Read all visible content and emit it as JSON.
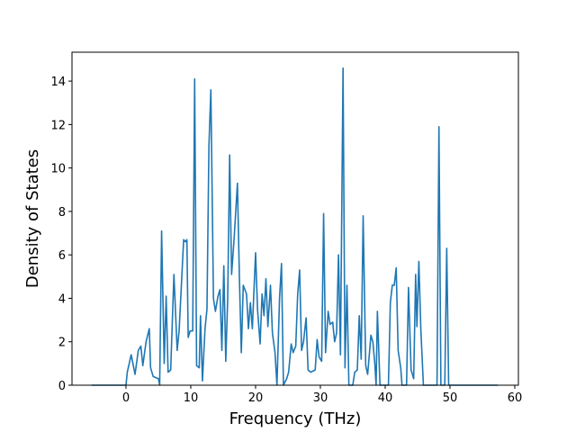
{
  "chart_data": {
    "type": "line",
    "xlabel": "Frequency (THz)",
    "ylabel": "Density of States",
    "x": [
      -5.3,
      0,
      0.2,
      0.8,
      1.4,
      1.9,
      2.3,
      2.6,
      3.1,
      3.6,
      3.8,
      4.2,
      5.0,
      5.2,
      5.5,
      5.9,
      6.2,
      6.5,
      6.9,
      7.4,
      7.9,
      8.2,
      8.9,
      9.2,
      9.4,
      9.6,
      9.9,
      10.3,
      10.6,
      10.9,
      11.3,
      11.5,
      11.8,
      12.2,
      12.5,
      12.8,
      13.1,
      13.5,
      13.8,
      14.2,
      14.5,
      14.8,
      15.1,
      15.4,
      15.7,
      16.0,
      16.3,
      16.7,
      17.2,
      17.5,
      17.8,
      18.1,
      18.6,
      18.9,
      19.2,
      19.5,
      20.0,
      20.3,
      20.7,
      21.0,
      21.3,
      21.6,
      21.9,
      22.3,
      22.6,
      23.0,
      23.3,
      23.7,
      24.0,
      24.3,
      24.8,
      25.1,
      25.5,
      25.8,
      26.2,
      26.5,
      26.8,
      27.1,
      27.4,
      27.8,
      28.1,
      28.5,
      29.2,
      29.5,
      29.8,
      30.2,
      30.5,
      30.8,
      31.2,
      31.5,
      31.9,
      32.2,
      32.5,
      32.8,
      33.1,
      33.5,
      33.8,
      34.1,
      34.4,
      35.0,
      35.3,
      35.7,
      36.0,
      36.3,
      36.6,
      37.0,
      37.3,
      37.8,
      38.1,
      38.4,
      38.6,
      38.8,
      39.2,
      40.5,
      40.8,
      41.1,
      41.4,
      41.7,
      42.0,
      42.4,
      42.6,
      43.3,
      43.6,
      44.0,
      44.4,
      44.7,
      44.9,
      45.2,
      45.5,
      45.9,
      46.3,
      48.0,
      48.3,
      48.6,
      49.2,
      49.5,
      49.8,
      57.4
    ],
    "series": [
      {
        "name": "DOS",
        "color": "#1f77b4",
        "values": [
          0,
          0,
          0.6,
          1.4,
          0.5,
          1.6,
          1.8,
          0.9,
          2,
          2.6,
          0.8,
          0.4,
          0.3,
          0,
          7.1,
          1.0,
          4.1,
          0.6,
          0.7,
          5.1,
          1.6,
          2.5,
          6.7,
          6.6,
          6.7,
          2.2,
          2.5,
          2.5,
          14.1,
          0.9,
          0.8,
          3.2,
          0.2,
          2.6,
          3.5,
          11,
          13.6,
          4.0,
          3.4,
          4.1,
          4.4,
          1.6,
          5.5,
          1.1,
          4,
          10.6,
          5.1,
          6.8,
          9.3,
          5,
          1.5,
          4.6,
          4.2,
          2.6,
          3.8,
          2.6,
          6.1,
          3.5,
          1.9,
          4.2,
          3.2,
          4.9,
          2.7,
          4.6,
          2.4,
          1.5,
          0,
          4,
          5.6,
          0,
          0.3,
          0.6,
          1.9,
          1.5,
          1.8,
          4.2,
          5.3,
          1.6,
          2,
          3.1,
          0.7,
          0.6,
          0.7,
          2.1,
          1.3,
          1.1,
          7.9,
          1.5,
          3.4,
          2.8,
          2.9,
          2.0,
          2.4,
          6.0,
          1.4,
          14.6,
          0.8,
          4.6,
          0,
          0,
          0.6,
          0.7,
          3.2,
          1.2,
          7.8,
          0.9,
          0.5,
          2.3,
          2,
          1.0,
          0,
          3.4,
          0,
          0,
          3.8,
          4.6,
          4.6,
          5.4,
          1.6,
          0.8,
          0,
          0,
          4.5,
          0.7,
          0.3,
          5.1,
          2.7,
          5.7,
          2.6,
          0,
          0,
          0,
          11.9,
          0,
          0,
          6.3,
          0,
          0
        ]
      }
    ],
    "xlim": [
      -8.33,
      60.56
    ],
    "xticks": [
      0,
      10,
      20,
      30,
      40,
      50,
      60
    ],
    "ylim": [
      0,
      15.33
    ],
    "yticks": [
      0,
      2,
      4,
      6,
      8,
      10,
      12,
      14
    ]
  }
}
